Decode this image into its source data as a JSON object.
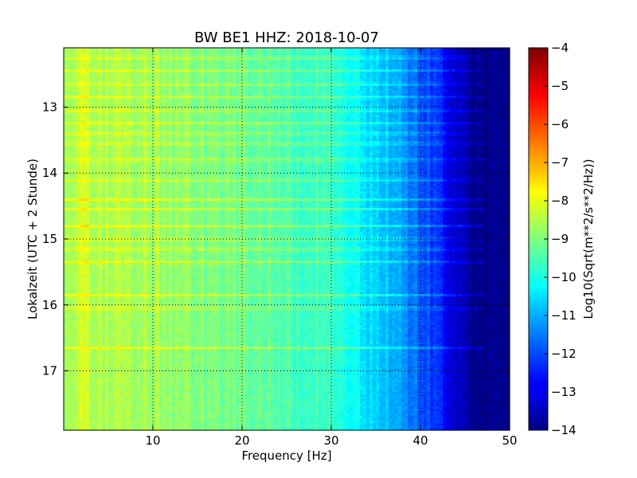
{
  "chart_data": {
    "type": "heatmap",
    "title": "BW BE1 HHZ: 2018-10-07",
    "xlabel": "Frequency [Hz]",
    "ylabel": "Lokalzeit (UTC + 2 Stunde)",
    "xlim": [
      0,
      50
    ],
    "ylim": [
      12.1,
      17.9
    ],
    "y_inverted": true,
    "xticks": [
      10,
      20,
      30,
      40,
      50
    ],
    "yticks": [
      13,
      14,
      15,
      16,
      17
    ],
    "grid": true,
    "colormap": "jet",
    "colorbar": {
      "label": "Log10(Sqrt(m**2/s**2/Hz))",
      "range": [
        -14,
        -4
      ],
      "ticks": [
        -4,
        -5,
        -6,
        -7,
        -8,
        -9,
        -10,
        -11,
        -12,
        -13,
        -14
      ]
    },
    "spectral_profile": {
      "frequency_hz": [
        0,
        2,
        5,
        10,
        15,
        20,
        25,
        30,
        33,
        36,
        38,
        40,
        42,
        44,
        46,
        50
      ],
      "log_amplitude": [
        -8.7,
        -8.3,
        -8.6,
        -8.6,
        -8.9,
        -9.2,
        -9.5,
        -9.8,
        -10.3,
        -10.9,
        -11.3,
        -11.8,
        -12.4,
        -13.2,
        -14,
        -14
      ]
    },
    "bright_bands_hours": [
      12.25,
      12.45,
      12.65,
      12.85,
      13.05,
      13.25,
      13.4,
      13.55,
      13.8,
      14.1,
      14.4,
      14.55,
      14.8,
      15.0,
      15.15,
      15.35,
      15.85,
      16.05,
      16.65
    ]
  }
}
